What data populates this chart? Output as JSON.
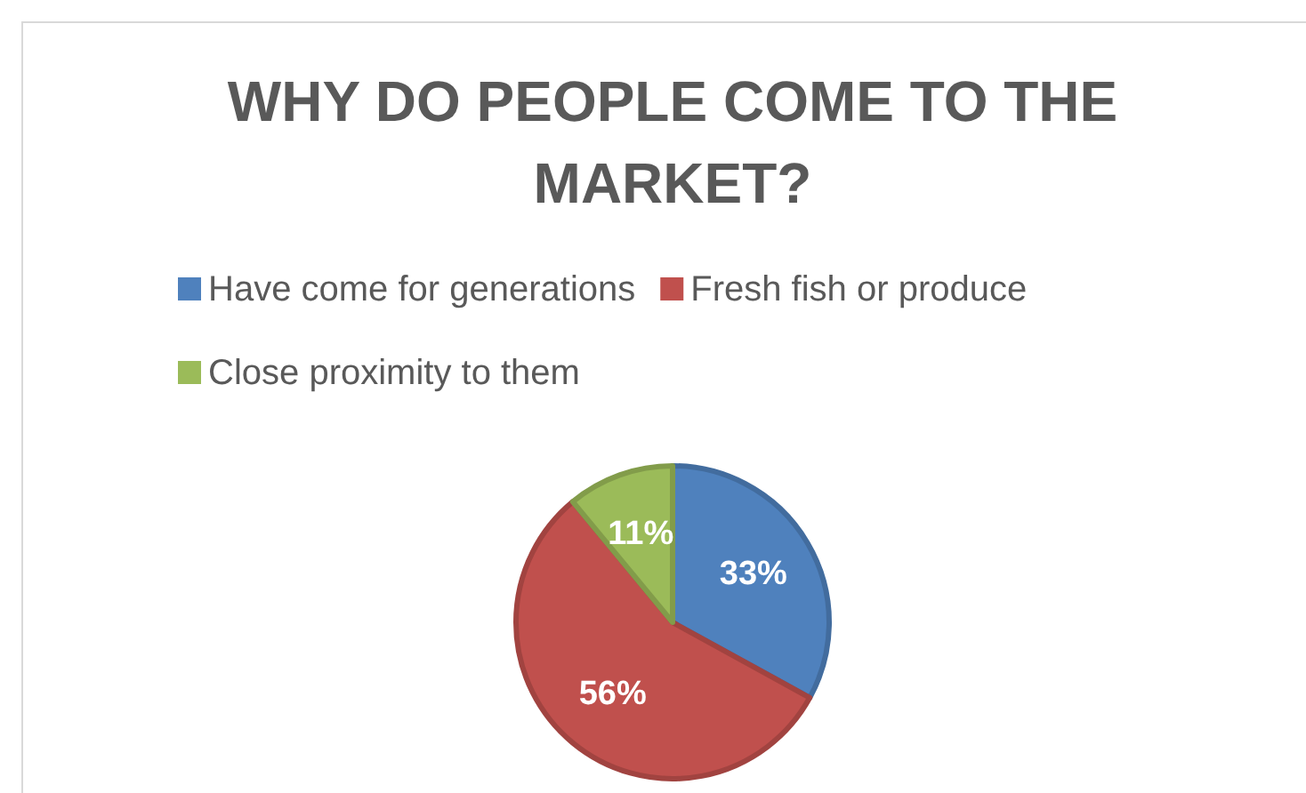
{
  "chart_data": {
    "type": "pie",
    "title": "WHY DO PEOPLE COME TO THE MARKET?",
    "categories": [
      "Have come for generations",
      "Fresh fish or produce",
      "Close proximity to them"
    ],
    "values": [
      33,
      56,
      11
    ],
    "colors": [
      "#4f81bd",
      "#c0504d",
      "#9bbb59"
    ],
    "value_labels": [
      "33%",
      "56%",
      "11%"
    ],
    "legend": "top"
  }
}
